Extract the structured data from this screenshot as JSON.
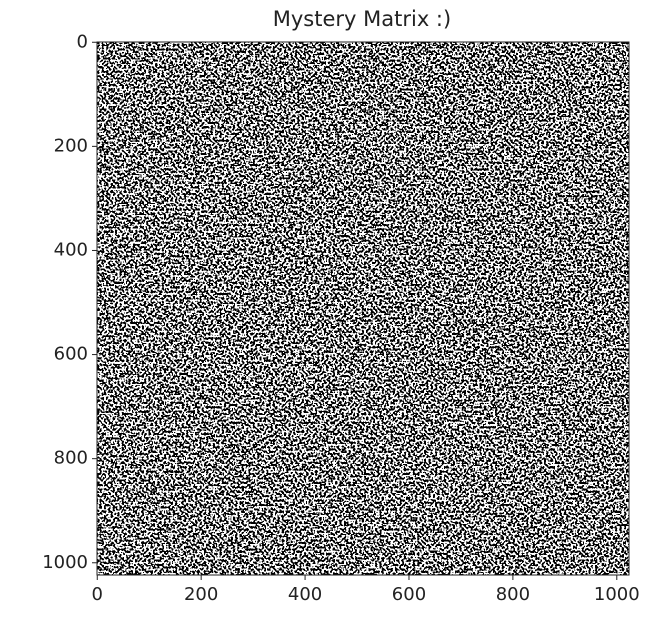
{
  "chart_data": {
    "type": "heatmap",
    "title": "Mystery Matrix :)",
    "xlim": [
      -0.5,
      1023.5
    ],
    "ylim": [
      1023.5,
      -0.5
    ],
    "xticks": [
      0,
      200,
      400,
      600,
      800,
      1000
    ],
    "yticks": [
      0,
      200,
      400,
      600,
      800,
      1000
    ]
  }
}
